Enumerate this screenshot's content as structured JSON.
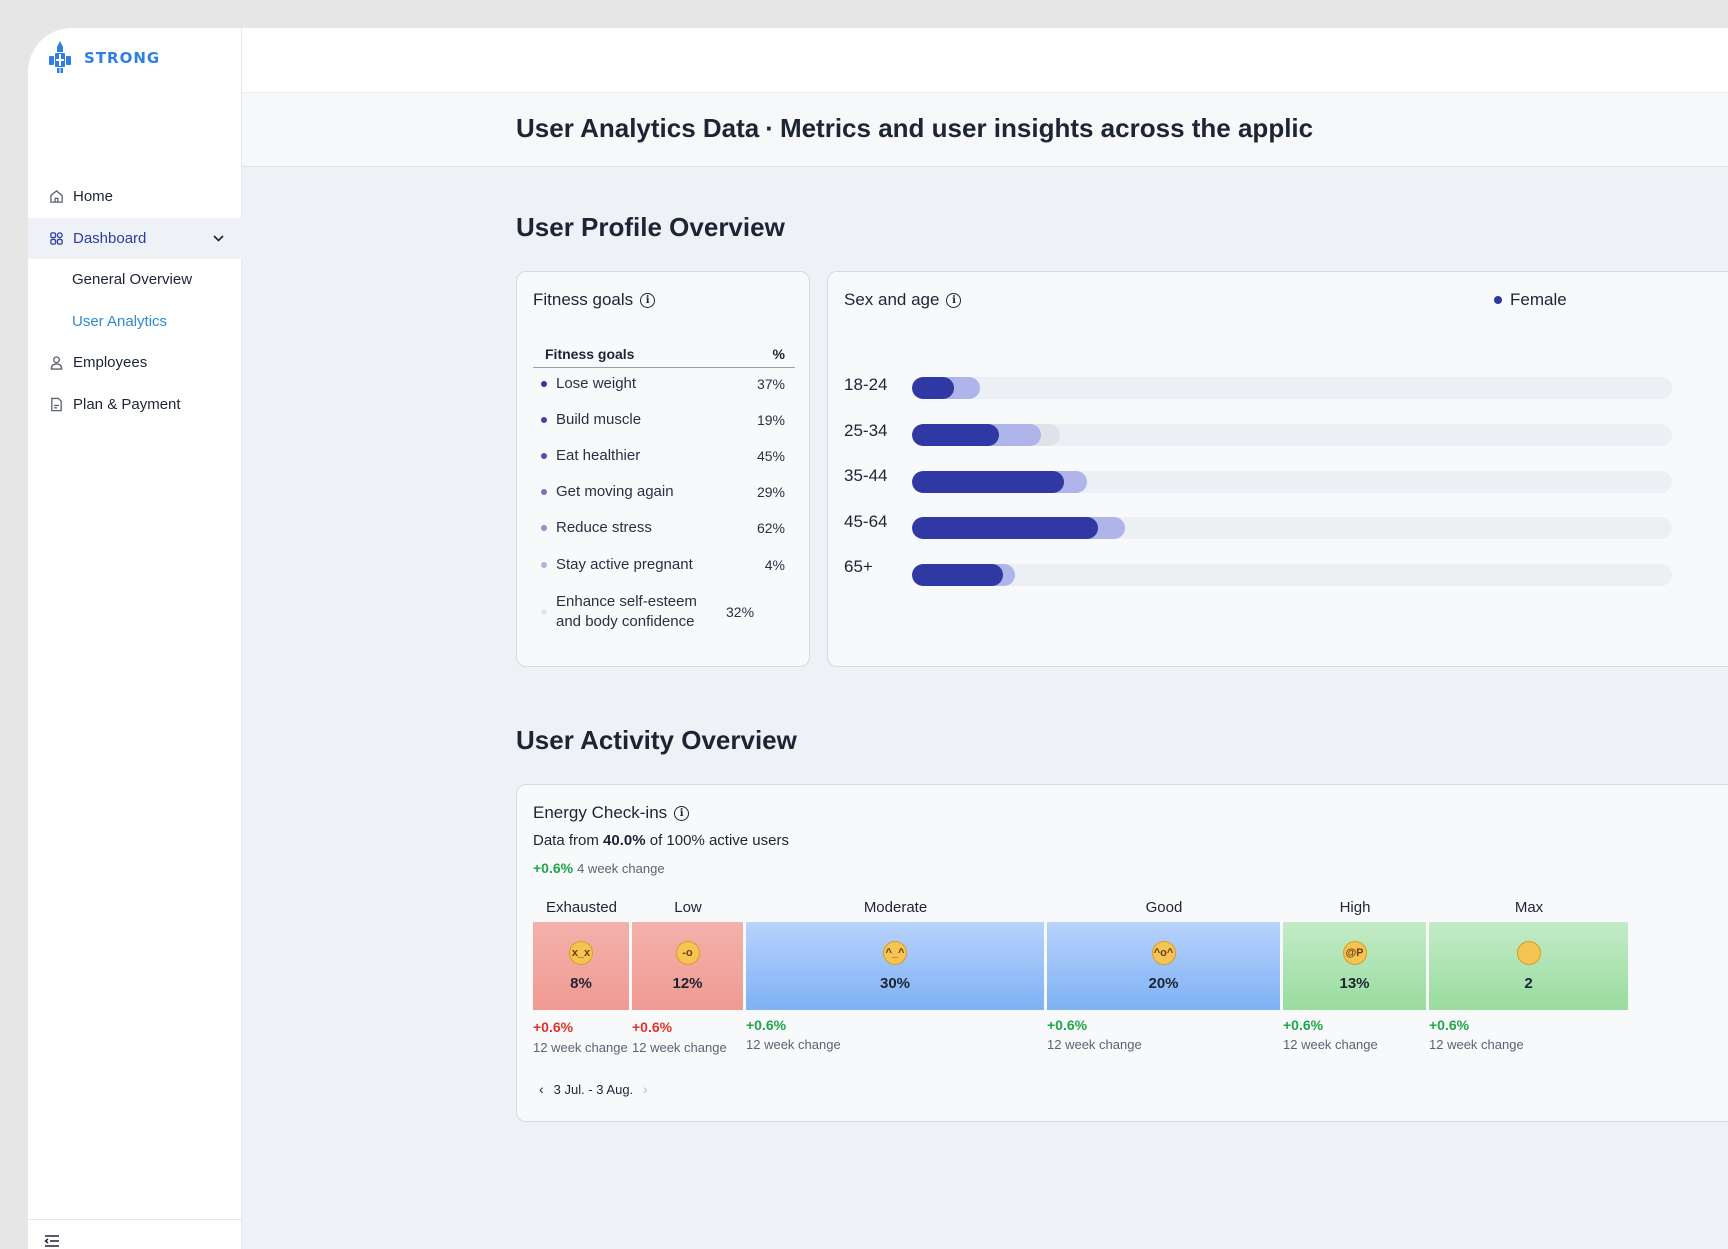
{
  "brand": {
    "name": "STRONG"
  },
  "sidebar": {
    "items": [
      {
        "label": "Home",
        "icon": "home-icon"
      },
      {
        "label": "Dashboard",
        "icon": "grid-icon"
      },
      {
        "label": "General Overview"
      },
      {
        "label": "User Analytics"
      },
      {
        "label": "Employees",
        "icon": "user-icon"
      },
      {
        "label": "Plan & Payment",
        "icon": "document-icon"
      }
    ]
  },
  "header": {
    "title": "User Analytics Data",
    "separator": "·",
    "subtitle": "Metrics and user insights across the applic"
  },
  "profile_section": {
    "title": "User Profile Overview"
  },
  "fitness": {
    "title": "Fitness goals",
    "col_goal": "Fitness goals",
    "col_pct": "%",
    "rows": [
      {
        "label": "Lose weight",
        "pct": "37%",
        "color": "#2f37a0"
      },
      {
        "label": "Build muscle",
        "pct": "19%",
        "color": "#3b45ad"
      },
      {
        "label": "Eat healthier",
        "pct": "45%",
        "color": "#4a55b8"
      },
      {
        "label": "Get moving again",
        "pct": "29%",
        "color": "#6a76c7"
      },
      {
        "label": "Reduce stress",
        "pct": "62%",
        "color": "#8a93d4"
      },
      {
        "label": "Stay active pregnant",
        "pct": "4%",
        "color": "#aeb4e2"
      },
      {
        "label": "Enhance self-esteem and body confidence",
        "pct": "32%",
        "color": "#e3e5ef"
      }
    ]
  },
  "sexage": {
    "title": "Sex and age",
    "legend_female": "Female",
    "colors": {
      "female": "#3038a3",
      "male": "#afb5ea",
      "other": "#dfe2e8"
    },
    "groups": [
      {
        "label": "18-24",
        "female": 5.5,
        "male": 3.5,
        "other": 0
      },
      {
        "label": "25-34",
        "female": 11.5,
        "male": 5.5,
        "other": 2.5
      },
      {
        "label": "35-44",
        "female": 20,
        "male": 3,
        "other": 0
      },
      {
        "label": "45-64",
        "female": 24.5,
        "male": 3.5,
        "other": 0
      },
      {
        "label": "65+",
        "female": 12,
        "male": 1.5,
        "other": 0
      }
    ]
  },
  "activity_section": {
    "title": "User Activity Overview"
  },
  "energy": {
    "title": "Energy Check-ins",
    "sub_prefix": "Data from",
    "sub_value": "40.0%",
    "sub_suffix": "of 100% active users",
    "change_value": "+0.6%",
    "change_label": "4 week change",
    "levels": [
      {
        "label": "Exhausted",
        "pct": "8%",
        "face": "x_x",
        "change": "+0.6%",
        "change_label": "12 week change",
        "tone": "red"
      },
      {
        "label": "Low",
        "pct": "12%",
        "face": "-o",
        "change": "+0.6%",
        "change_label": "12 week change",
        "tone": "red"
      },
      {
        "label": "Moderate",
        "pct": "30%",
        "face": "^_^",
        "change": "+0.6%",
        "change_label": "12 week change",
        "tone": "blue"
      },
      {
        "label": "Good",
        "pct": "20%",
        "face": "^o^",
        "change": "+0.6%",
        "change_label": "12 week change",
        "tone": "blue"
      },
      {
        "label": "High",
        "pct": "13%",
        "face": "@P",
        "change": "+0.6%",
        "change_label": "12 week change",
        "tone": "green"
      },
      {
        "label": "Max",
        "pct": "2",
        "face": "",
        "change": "+0.6%",
        "change_label": "12 week change",
        "tone": "green"
      }
    ],
    "date_range": "3 Jul. - 3 Aug."
  }
}
